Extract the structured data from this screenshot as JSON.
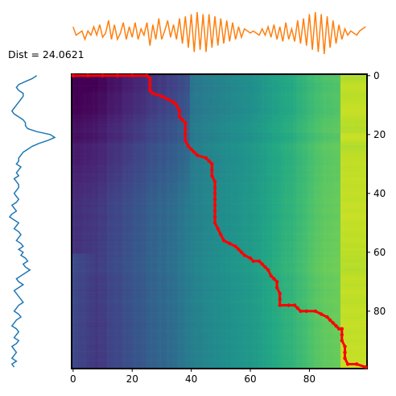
{
  "annotation": {
    "dist_text": "Dist = 24.0621"
  },
  "colors": {
    "top_signal": "#ff7f0e",
    "left_signal": "#1f77b4",
    "warp_path": "#ff0000",
    "colormap": "viridis"
  },
  "chart_data": [
    {
      "type": "heatmap",
      "name": "cost-matrix",
      "title": "",
      "xlabel": "",
      "ylabel": "",
      "xlim": [
        0,
        99
      ],
      "ylim": [
        99,
        0
      ],
      "xticks": [
        "0",
        "20",
        "40",
        "60",
        "80"
      ],
      "yticks": [
        "0",
        "20",
        "40",
        "60",
        "80"
      ],
      "ytick_side": "right",
      "grid": false,
      "colormap": "viridis",
      "warp_path": {
        "color": "#ff0000",
        "points": [
          [
            0,
            0
          ],
          [
            5,
            0
          ],
          [
            10,
            0
          ],
          [
            15,
            0
          ],
          [
            20,
            0
          ],
          [
            25,
            0
          ],
          [
            26,
            1
          ],
          [
            26,
            3
          ],
          [
            26,
            5
          ],
          [
            27,
            6
          ],
          [
            30,
            7
          ],
          [
            32,
            8
          ],
          [
            34,
            9
          ],
          [
            35,
            10
          ],
          [
            36,
            12
          ],
          [
            36,
            14
          ],
          [
            37,
            15
          ],
          [
            38,
            16
          ],
          [
            38,
            18
          ],
          [
            38,
            20
          ],
          [
            38,
            22
          ],
          [
            39,
            24
          ],
          [
            40,
            25
          ],
          [
            41,
            26
          ],
          [
            42,
            27
          ],
          [
            45,
            28
          ],
          [
            46,
            29
          ],
          [
            47,
            30
          ],
          [
            47,
            32
          ],
          [
            47,
            34
          ],
          [
            48,
            36
          ],
          [
            48,
            38
          ],
          [
            48,
            40
          ],
          [
            48,
            42
          ],
          [
            48,
            44
          ],
          [
            48,
            46
          ],
          [
            48,
            48
          ],
          [
            48,
            50
          ],
          [
            49,
            52
          ],
          [
            50,
            54
          ],
          [
            51,
            56
          ],
          [
            53,
            57
          ],
          [
            55,
            58
          ],
          [
            56,
            59
          ],
          [
            57,
            60
          ],
          [
            58,
            61
          ],
          [
            60,
            62
          ],
          [
            61,
            63
          ],
          [
            63,
            63
          ],
          [
            64,
            64
          ],
          [
            65,
            65
          ],
          [
            66,
            66
          ],
          [
            67,
            68
          ],
          [
            68,
            69
          ],
          [
            69,
            70
          ],
          [
            69,
            72
          ],
          [
            70,
            74
          ],
          [
            70,
            76
          ],
          [
            70,
            78
          ],
          [
            73,
            78
          ],
          [
            75,
            78
          ],
          [
            76,
            79
          ],
          [
            77,
            80
          ],
          [
            79,
            80
          ],
          [
            82,
            80
          ],
          [
            84,
            81
          ],
          [
            86,
            82
          ],
          [
            87,
            83
          ],
          [
            88,
            84
          ],
          [
            89,
            85
          ],
          [
            90,
            86
          ],
          [
            91,
            86
          ],
          [
            91,
            88
          ],
          [
            91,
            90
          ],
          [
            92,
            92
          ],
          [
            92,
            94
          ],
          [
            92,
            96
          ],
          [
            93,
            98
          ],
          [
            96,
            98
          ],
          [
            99,
            99
          ]
        ]
      }
    },
    {
      "type": "line",
      "name": "top-signal",
      "x_range": [
        0,
        99
      ],
      "series": [
        {
          "values": [
            0.3,
            -0.1,
            0.0,
            0.1,
            -0.3,
            0.1,
            -0.1,
            0.3,
            -0.1,
            0.4,
            -0.2,
            0.0,
            0.6,
            -0.3,
            0.4,
            -0.3,
            0.0,
            0.5,
            -0.3,
            0.3,
            -0.2,
            0.5,
            -0.3,
            0.2,
            -0.1,
            0.5,
            -0.6,
            0.4,
            -0.3,
            0.7,
            -0.3,
            0.1,
            0.6,
            -0.2,
            0.4,
            -0.3,
            0.7,
            -0.5,
            0.8,
            -0.7,
            0.9,
            -0.9,
            1.0,
            -0.8,
            0.9,
            -0.9,
            0.9,
            -0.7,
            0.8,
            -0.6,
            0.7,
            -0.5,
            0.6,
            -0.4,
            0.5,
            -0.3,
            0.3,
            -0.2,
            0.2,
            0.1,
            0.0,
            0.1,
            0.0,
            -0.1,
            0.2,
            -0.1,
            0.3,
            -0.2,
            0.4,
            -0.3,
            0.3,
            -0.4,
            0.5,
            -0.3,
            0.2,
            -0.4,
            0.6,
            -0.5,
            0.7,
            -0.6,
            0.9,
            -0.8,
            1.0,
            -0.9,
            0.9,
            -1.0,
            0.8,
            -0.7,
            0.6,
            -0.5,
            0.4,
            -0.3,
            0.2,
            -0.1,
            0.1,
            0.0,
            -0.1,
            0.1,
            0.2,
            0.3
          ]
        }
      ]
    },
    {
      "type": "line",
      "name": "left-signal",
      "y_range": [
        0,
        99
      ],
      "series": [
        {
          "values": [
            0.2,
            0.0,
            -0.3,
            -0.6,
            -0.7,
            -0.6,
            -0.4,
            -0.4,
            -0.5,
            -0.6,
            -0.7,
            -0.8,
            -0.9,
            -0.8,
            -0.6,
            -0.4,
            -0.3,
            -0.3,
            -0.2,
            0.2,
            0.8,
            1.0,
            0.7,
            0.3,
            0.0,
            -0.2,
            -0.4,
            -0.5,
            -0.6,
            -0.6,
            -0.7,
            -0.5,
            -0.6,
            -0.7,
            -0.6,
            -0.8,
            -0.7,
            -0.6,
            -0.6,
            -0.7,
            -0.8,
            -0.7,
            -0.6,
            -0.7,
            -0.9,
            -0.8,
            -0.7,
            -0.9,
            -1.0,
            -0.8,
            -0.6,
            -0.7,
            -0.8,
            -0.6,
            -0.5,
            -0.6,
            -0.7,
            -0.5,
            -0.4,
            -0.6,
            -0.4,
            -0.5,
            -0.3,
            -0.2,
            -0.4,
            -0.3,
            -0.1,
            -0.3,
            -0.5,
            -0.7,
            -0.6,
            -0.4,
            -0.6,
            -0.8,
            -0.7,
            -0.6,
            -0.5,
            -0.4,
            -0.6,
            -0.7,
            -0.8,
            -0.6,
            -0.5,
            -0.7,
            -0.8,
            -0.9,
            -0.7,
            -0.6,
            -0.7,
            -0.8,
            -0.6,
            -0.7,
            -0.9,
            -0.8,
            -0.7,
            -0.8,
            -0.9,
            -0.7,
            -0.9,
            -0.8
          ]
        }
      ]
    }
  ]
}
